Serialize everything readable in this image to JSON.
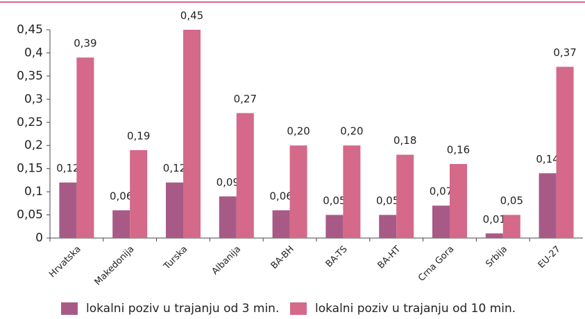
{
  "chart_data": {
    "type": "bar",
    "categories": [
      "Hrvatska",
      "Makedonija",
      "Turska",
      "Albanija",
      "BA-BH",
      "BA-TS",
      "BA-HT",
      "Crna Gora",
      "Srbija",
      "EU-27"
    ],
    "series": [
      {
        "name": "lokalni poziv u trajanju od 3 min.",
        "color": "#a85a87",
        "values": [
          0.12,
          0.06,
          0.12,
          0.09,
          0.06,
          0.05,
          0.05,
          0.07,
          0.01,
          0.14
        ],
        "value_labels": [
          "0,12",
          "0,06",
          "0,12",
          "0,09",
          "0,06",
          "0,05",
          "0,05",
          "0,07",
          "0,01",
          "0,14"
        ]
      },
      {
        "name": "lokalni poziv u trajanju od 10 min.",
        "color": "#d4698a",
        "values": [
          0.39,
          0.19,
          0.45,
          0.27,
          0.2,
          0.2,
          0.18,
          0.16,
          0.05,
          0.37
        ],
        "value_labels": [
          "0,39",
          "0,19",
          "0,45",
          "0,27",
          "0,20",
          "0,20",
          "0,18",
          "0,16",
          "0,05",
          "0,37"
        ]
      }
    ],
    "ylim": [
      0,
      0.45
    ],
    "yticks": [
      0,
      {
        "value": 0.05,
        "label": "0,05"
      },
      {
        "value": 0.1,
        "label": "0,1"
      },
      {
        "value": 0.15,
        "label": "0,15"
      },
      {
        "value": 0.2,
        "label": "0,2"
      },
      {
        "value": 0.25,
        "label": "0,25"
      },
      {
        "value": 0.3,
        "label": "0,3"
      },
      {
        "value": 0.35,
        "label": "0,35"
      },
      {
        "value": 0.4,
        "label": "0,4"
      },
      {
        "value": 0.45,
        "label": "0,45"
      }
    ],
    "legend": "bottom"
  }
}
